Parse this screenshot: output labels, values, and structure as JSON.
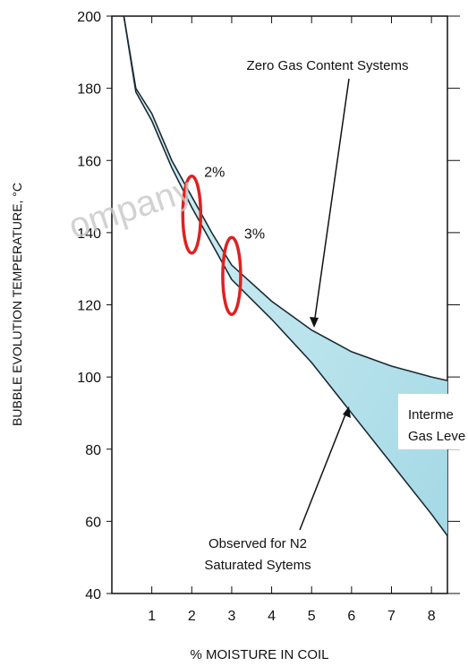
{
  "chart_data": {
    "type": "line",
    "x_label": "% MOISTURE IN COIL",
    "y_label": "BUBBLE EVOLUTION TEMPERATURE, °C",
    "x": [
      0.3,
      0.6,
      1,
      1.5,
      2,
      2.5,
      3,
      4,
      5,
      6,
      7,
      8,
      8.4
    ],
    "series": [
      {
        "color": "#1a2a33",
        "values": [
          200,
          180,
          173,
          160,
          150,
          140,
          131,
          121,
          113,
          107,
          103,
          100,
          99
        ]
      },
      {
        "color": "#1a2a33",
        "values": [
          200,
          179,
          171,
          158,
          147,
          137,
          127,
          116,
          104,
          90,
          76,
          62,
          56
        ]
      }
    ],
    "fill_color": "#bfe5ee",
    "xlim": [
      0,
      8.4
    ],
    "xticks": [
      1,
      2,
      3,
      4,
      5,
      6,
      7,
      8
    ],
    "ylim": [
      40,
      200
    ],
    "yticks": [
      40,
      60,
      80,
      100,
      120,
      140,
      160,
      180,
      200
    ],
    "markers": [
      {
        "text": "2%",
        "x": 2,
        "y": 145,
        "color": "#e02020"
      },
      {
        "text": "3%",
        "x": 3,
        "y": 128,
        "color": "#e02020"
      }
    ],
    "annotations": [
      "Zero Gas Content Systems",
      "Observed for N2",
      "Saturated Sytems",
      "Interme",
      "Gas Leve"
    ],
    "watermark": "ompany"
  }
}
